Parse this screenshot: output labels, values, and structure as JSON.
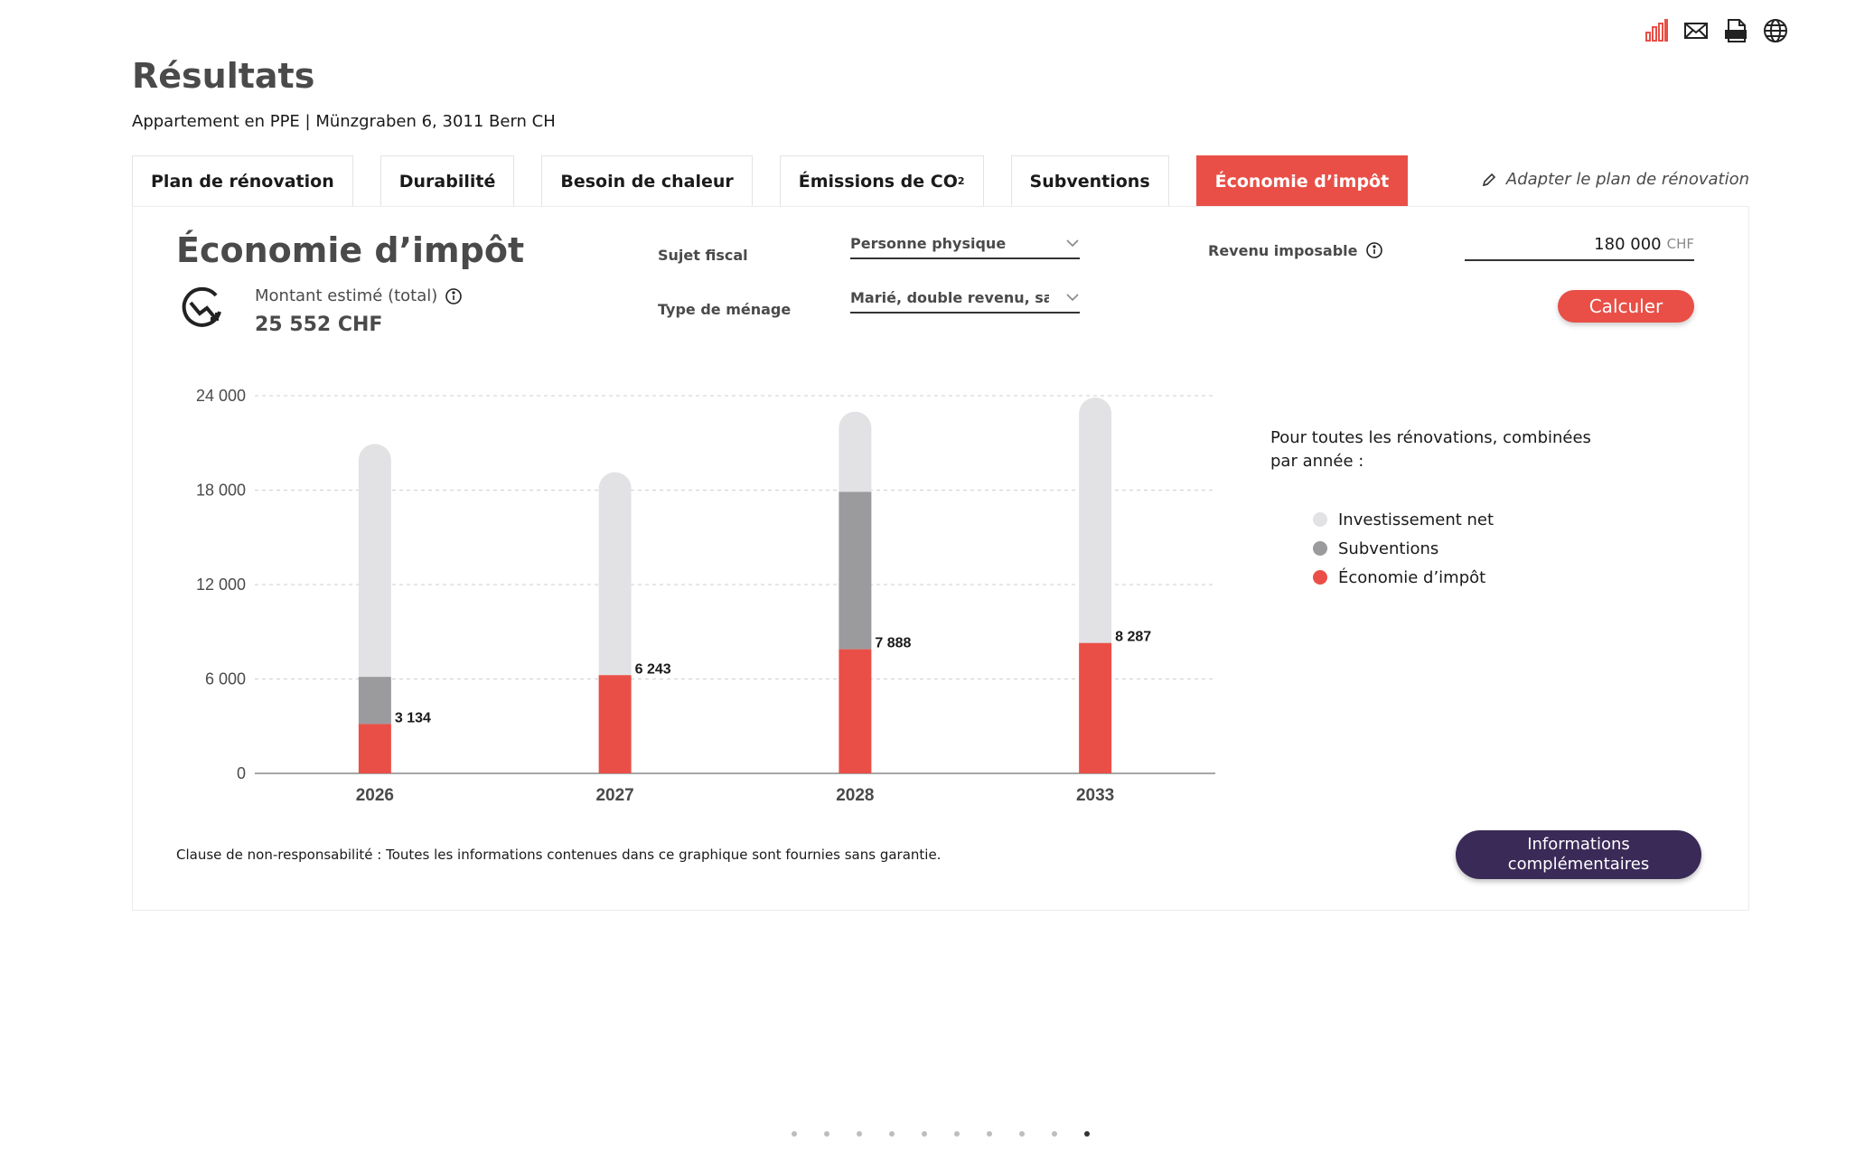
{
  "page": {
    "title": "Résultats",
    "subtitle": "Appartement en PPE | Münzgraben 6, 3011 Bern CH"
  },
  "header_icons": [
    "bar-chart-icon",
    "mail-icon",
    "pdf-icon",
    "globe-icon"
  ],
  "tabs": [
    {
      "label": "Plan de rénovation",
      "active": false
    },
    {
      "label": "Durabilité",
      "active": false
    },
    {
      "label": "Besoin de chaleur",
      "active": false
    },
    {
      "label": "Émissions de CO",
      "sub": "2",
      "active": false
    },
    {
      "label": "Subventions",
      "active": false
    },
    {
      "label": "Économie d’impôt",
      "active": true
    }
  ],
  "adapt_link": "Adapter le plan de rénovation",
  "section": {
    "title": "Économie d’impôt",
    "amount_label": "Montant estimé (total)",
    "amount_value": "25 552 CHF"
  },
  "form": {
    "subject_label": "Sujet fiscal",
    "subject_value": "Personne physique",
    "household_label": "Type de ménage",
    "household_value": "Marié, double revenu, sans enfants",
    "income_label": "Revenu imposable",
    "income_value": "180 000",
    "income_unit": "CHF",
    "calc_button": "Calculer"
  },
  "chart_data": {
    "type": "bar",
    "stacked": true,
    "categories": [
      "2026",
      "2027",
      "2028",
      "2033"
    ],
    "series": [
      {
        "name": "Économie d’impôt",
        "color": "#e94f47",
        "values": [
          3134,
          6243,
          7888,
          8287
        ]
      },
      {
        "name": "Subventions",
        "color": "#9b9b9e",
        "values": [
          3000,
          0,
          10000,
          0
        ]
      },
      {
        "name": "Investissement net",
        "color": "#e2e2e5",
        "values": [
          14800,
          12900,
          5100,
          15600
        ]
      }
    ],
    "data_labels": [
      "3 134",
      "6 243",
      "7 888",
      "8 287"
    ],
    "y_ticks": [
      "0",
      "6 000",
      "12 000",
      "18 000",
      "24 000"
    ],
    "ylim": [
      0,
      24000
    ],
    "grid": true,
    "legend_position": "right"
  },
  "legend": {
    "title": "Pour toutes les rénovations, combinées par année :",
    "items": [
      {
        "label": "Investissement net",
        "color": "#e2e2e5"
      },
      {
        "label": "Subventions",
        "color": "#9b9b9e"
      },
      {
        "label": "Économie d’impôt",
        "color": "#e94f47"
      }
    ]
  },
  "disclaimer": "Clause de non-responsabilité : Toutes les informations contenues dans ce graphique sont fournies sans garantie.",
  "more_button": "Informations complémentaires",
  "pagination": {
    "count": 10,
    "active": 10
  }
}
